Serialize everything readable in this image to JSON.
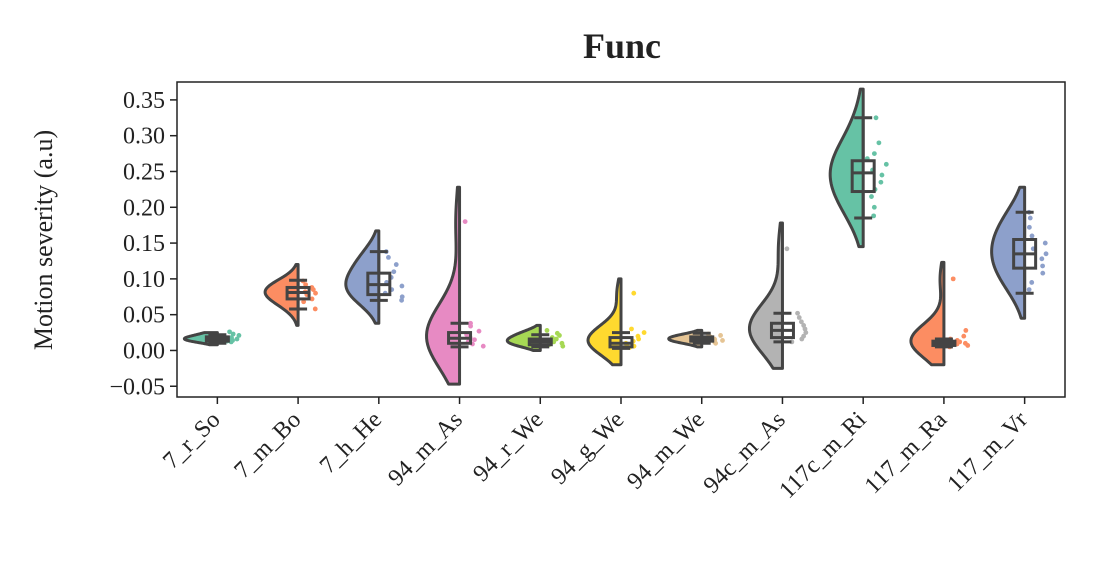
{
  "chart_data": {
    "type": "raincloud",
    "title": "Func",
    "ylabel": "Motion severity (a.u)",
    "xlabel": "",
    "ylim": [
      -0.065,
      0.375
    ],
    "yticks": [
      -0.05,
      0.0,
      0.05,
      0.1,
      0.15,
      0.2,
      0.25,
      0.3,
      0.35
    ],
    "ytick_labels": [
      "−0.05",
      "0.00",
      "0.05",
      "0.10",
      "0.15",
      "0.20",
      "0.25",
      "0.30",
      "0.35"
    ],
    "grid": false,
    "categories": [
      "7_r_So",
      "7_m_Bo",
      "7_h_He",
      "94_m_As",
      "94_r_We",
      "94_g_We",
      "94_m_We",
      "94c_m_As",
      "117c_m_Ri",
      "117_m_Ra",
      "117_m_Vr"
    ],
    "series": [
      {
        "color": "#66c2a5",
        "box": {
          "whislo": 0.01,
          "q1": 0.013,
          "med": 0.016,
          "q3": 0.019,
          "whishi": 0.022
        },
        "kde_range": [
          0.008,
          0.025
        ],
        "points": [
          0.012,
          0.014,
          0.015,
          0.016,
          0.017,
          0.018,
          0.019,
          0.021,
          0.023,
          0.026,
          0.013,
          0.016
        ]
      },
      {
        "color": "#fc8d62",
        "box": {
          "whislo": 0.058,
          "q1": 0.072,
          "med": 0.081,
          "q3": 0.088,
          "whishi": 0.098
        },
        "kde_range": [
          0.035,
          0.12
        ],
        "points": [
          0.058,
          0.068,
          0.072,
          0.078,
          0.08,
          0.082,
          0.085,
          0.088,
          0.092,
          0.097
        ]
      },
      {
        "color": "#8da0cb",
        "box": {
          "whislo": 0.07,
          "q1": 0.078,
          "med": 0.092,
          "q3": 0.108,
          "whishi": 0.138
        },
        "kde_range": [
          0.038,
          0.167
        ],
        "points": [
          0.07,
          0.075,
          0.08,
          0.085,
          0.09,
          0.095,
          0.102,
          0.11,
          0.12,
          0.13,
          0.138
        ]
      },
      {
        "color": "#e78ac3",
        "box": {
          "whislo": 0.005,
          "q1": 0.01,
          "med": 0.017,
          "q3": 0.025,
          "whishi": 0.038
        },
        "kde_range": [
          -0.047,
          0.228
        ],
        "points": [
          0.006,
          0.009,
          0.012,
          0.015,
          0.018,
          0.022,
          0.027,
          0.034,
          0.038,
          0.18
        ]
      },
      {
        "color": "#a6d854",
        "box": {
          "whislo": 0.005,
          "q1": 0.008,
          "med": 0.012,
          "q3": 0.016,
          "whishi": 0.022
        },
        "kde_range": [
          0.0,
          0.035
        ],
        "points": [
          0.006,
          0.008,
          0.01,
          0.012,
          0.014,
          0.016,
          0.018,
          0.021,
          0.024,
          0.028
        ]
      },
      {
        "color": "#ffd92f",
        "box": {
          "whislo": 0.003,
          "q1": 0.005,
          "med": 0.01,
          "q3": 0.018,
          "whishi": 0.025
        },
        "kde_range": [
          -0.02,
          0.1
        ],
        "points": [
          0.004,
          0.006,
          0.008,
          0.01,
          0.013,
          0.016,
          0.02,
          0.025,
          0.03,
          0.08
        ]
      },
      {
        "color": "#e5c494",
        "box": {
          "whislo": 0.01,
          "q1": 0.013,
          "med": 0.016,
          "q3": 0.019,
          "whishi": 0.024
        },
        "kde_range": [
          0.005,
          0.028
        ],
        "points": [
          0.01,
          0.012,
          0.014,
          0.015,
          0.016,
          0.018,
          0.019,
          0.021,
          0.023
        ]
      },
      {
        "color": "#b3b3b3",
        "box": {
          "whislo": 0.012,
          "q1": 0.018,
          "med": 0.028,
          "q3": 0.038,
          "whishi": 0.052
        },
        "kde_range": [
          -0.025,
          0.178
        ],
        "points": [
          0.012,
          0.016,
          0.02,
          0.025,
          0.03,
          0.035,
          0.04,
          0.046,
          0.052,
          0.142
        ]
      },
      {
        "color": "#66c2a5",
        "box": {
          "whislo": 0.185,
          "q1": 0.222,
          "med": 0.248,
          "q3": 0.265,
          "whishi": 0.325
        },
        "kde_range": [
          0.145,
          0.365
        ],
        "points": [
          0.188,
          0.2,
          0.215,
          0.225,
          0.235,
          0.245,
          0.252,
          0.26,
          0.268,
          0.275,
          0.29,
          0.325
        ]
      },
      {
        "color": "#fc8d62",
        "box": {
          "whislo": 0.005,
          "q1": 0.007,
          "med": 0.01,
          "q3": 0.013,
          "whishi": 0.016
        },
        "kde_range": [
          -0.02,
          0.123
        ],
        "points": [
          0.005,
          0.007,
          0.009,
          0.01,
          0.012,
          0.014,
          0.016,
          0.02,
          0.028,
          0.1
        ]
      },
      {
        "color": "#8da0cb",
        "box": {
          "whislo": 0.08,
          "q1": 0.115,
          "med": 0.135,
          "q3": 0.155,
          "whishi": 0.193
        },
        "kde_range": [
          0.045,
          0.228
        ],
        "points": [
          0.085,
          0.095,
          0.108,
          0.118,
          0.128,
          0.135,
          0.142,
          0.15,
          0.16,
          0.172,
          0.185,
          0.193
        ]
      }
    ]
  }
}
